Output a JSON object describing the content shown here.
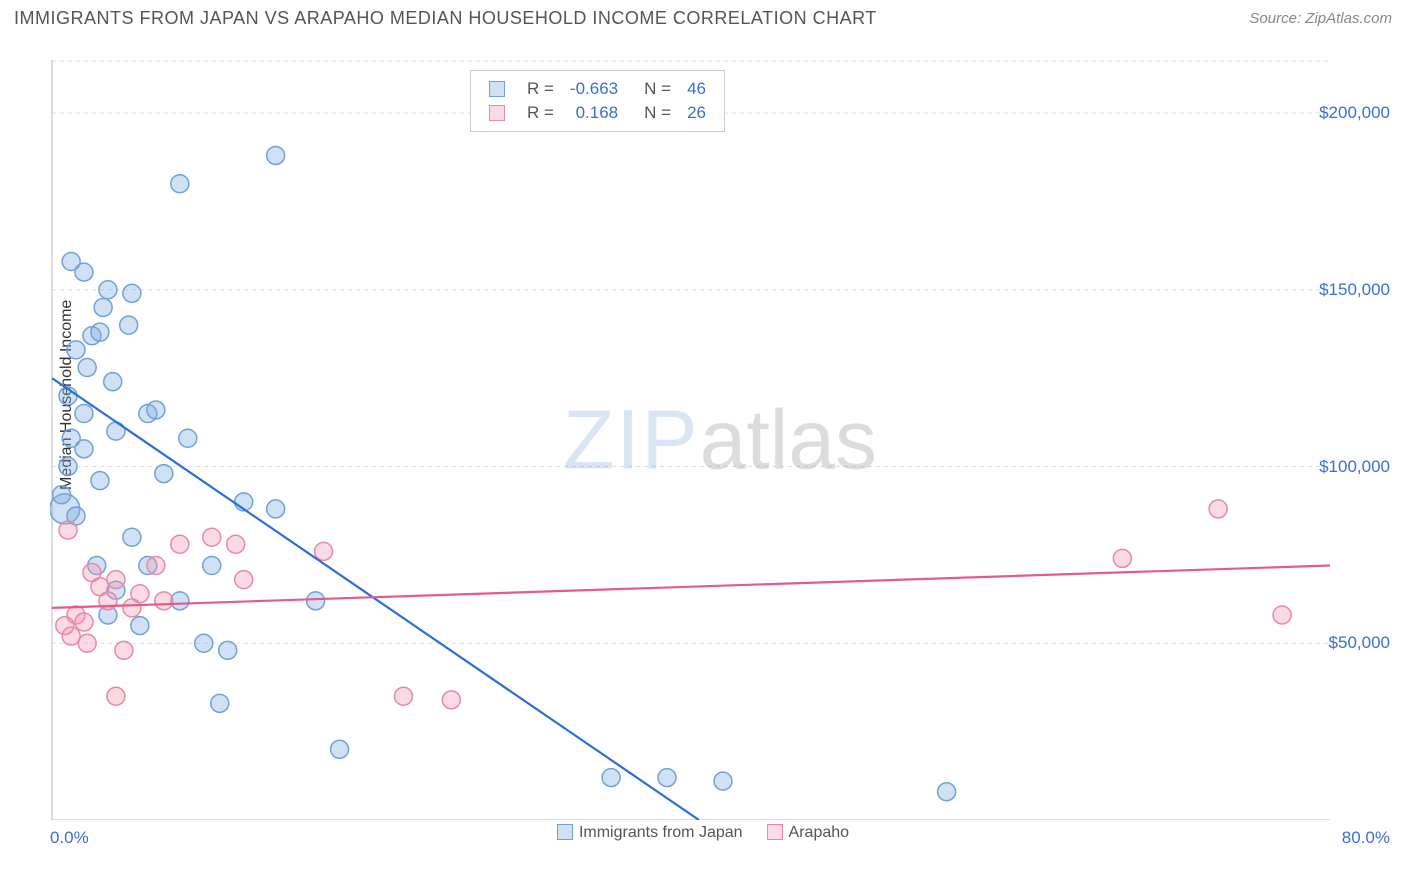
{
  "header": {
    "title": "IMMIGRANTS FROM JAPAN VS ARAPAHO MEDIAN HOUSEHOLD INCOME CORRELATION CHART",
    "source_prefix": "Source: ",
    "source_link": "ZipAtlas.com"
  },
  "chart": {
    "type": "scatter",
    "xlim": [
      0,
      80
    ],
    "ylim": [
      0,
      215000
    ],
    "xticks": [
      10,
      20,
      30,
      40,
      50,
      60,
      70
    ],
    "yticks": [
      50000,
      100000,
      150000,
      200000
    ],
    "ytick_labels": [
      "$50,000",
      "$100,000",
      "$150,000",
      "$200,000"
    ],
    "x_axis_start_label": "0.0%",
    "x_axis_end_label": "80.0%",
    "y_axis_label": "Median Household Income",
    "grid_color": "#dddddd",
    "axis_color": "#bbbbbb",
    "background_color": "#ffffff",
    "marker_radius": 9,
    "marker_stroke_width": 1.5,
    "line_width": 2.2,
    "series": [
      {
        "name": "Immigrants from Japan",
        "fill": "rgba(120,170,220,0.35)",
        "stroke": "#6fa3d8",
        "line_color": "#2e6fd6",
        "R": "-0.663",
        "N": "46",
        "trend": {
          "x1": 0,
          "y1": 125000,
          "x2": 40.5,
          "y2": 0
        },
        "points": [
          {
            "x": 1.2,
            "y": 158000
          },
          {
            "x": 2.0,
            "y": 155000
          },
          {
            "x": 3.5,
            "y": 150000
          },
          {
            "x": 5.0,
            "y": 149000
          },
          {
            "x": 8.0,
            "y": 180000
          },
          {
            "x": 14.0,
            "y": 188000
          },
          {
            "x": 2.5,
            "y": 137000
          },
          {
            "x": 3.0,
            "y": 138000
          },
          {
            "x": 1.5,
            "y": 133000
          },
          {
            "x": 2.2,
            "y": 128000
          },
          {
            "x": 3.8,
            "y": 124000
          },
          {
            "x": 6.0,
            "y": 115000
          },
          {
            "x": 6.5,
            "y": 116000
          },
          {
            "x": 4.0,
            "y": 110000
          },
          {
            "x": 2.0,
            "y": 105000
          },
          {
            "x": 8.5,
            "y": 108000
          },
          {
            "x": 1.0,
            "y": 100000
          },
          {
            "x": 7.0,
            "y": 98000
          },
          {
            "x": 3.0,
            "y": 96000
          },
          {
            "x": 12.0,
            "y": 90000
          },
          {
            "x": 14.0,
            "y": 88000
          },
          {
            "x": 0.8,
            "y": 88000,
            "r": 15
          },
          {
            "x": 1.5,
            "y": 86000
          },
          {
            "x": 5.0,
            "y": 80000
          },
          {
            "x": 2.8,
            "y": 72000
          },
          {
            "x": 6.0,
            "y": 72000
          },
          {
            "x": 10.0,
            "y": 72000
          },
          {
            "x": 4.0,
            "y": 65000
          },
          {
            "x": 8.0,
            "y": 62000
          },
          {
            "x": 16.5,
            "y": 62000
          },
          {
            "x": 3.5,
            "y": 58000
          },
          {
            "x": 9.5,
            "y": 50000
          },
          {
            "x": 11.0,
            "y": 48000
          },
          {
            "x": 10.5,
            "y": 33000
          },
          {
            "x": 18.0,
            "y": 20000
          },
          {
            "x": 35.0,
            "y": 12000
          },
          {
            "x": 38.5,
            "y": 12000
          },
          {
            "x": 42.0,
            "y": 11000
          },
          {
            "x": 56.0,
            "y": 8000
          },
          {
            "x": 3.2,
            "y": 145000
          },
          {
            "x": 4.8,
            "y": 140000
          },
          {
            "x": 1.0,
            "y": 120000
          },
          {
            "x": 2.0,
            "y": 115000
          },
          {
            "x": 1.2,
            "y": 108000
          },
          {
            "x": 0.6,
            "y": 92000
          },
          {
            "x": 5.5,
            "y": 55000
          }
        ]
      },
      {
        "name": "Arapaho",
        "fill": "rgba(240,150,175,0.35)",
        "stroke": "#e889a5",
        "line_color": "#e55a8a",
        "R": "0.168",
        "N": "26",
        "trend": {
          "x1": 0,
          "y1": 60000,
          "x2": 80,
          "y2": 72000
        },
        "points": [
          {
            "x": 1.0,
            "y": 82000
          },
          {
            "x": 2.5,
            "y": 70000
          },
          {
            "x": 4.0,
            "y": 68000
          },
          {
            "x": 3.0,
            "y": 66000
          },
          {
            "x": 5.5,
            "y": 64000
          },
          {
            "x": 6.5,
            "y": 72000
          },
          {
            "x": 8.0,
            "y": 78000
          },
          {
            "x": 10.0,
            "y": 80000
          },
          {
            "x": 11.5,
            "y": 78000
          },
          {
            "x": 17.0,
            "y": 76000
          },
          {
            "x": 1.5,
            "y": 58000
          },
          {
            "x": 2.0,
            "y": 56000
          },
          {
            "x": 0.8,
            "y": 55000
          },
          {
            "x": 3.5,
            "y": 62000
          },
          {
            "x": 5.0,
            "y": 60000
          },
          {
            "x": 7.0,
            "y": 62000
          },
          {
            "x": 1.2,
            "y": 52000
          },
          {
            "x": 2.2,
            "y": 50000
          },
          {
            "x": 4.5,
            "y": 48000
          },
          {
            "x": 4.0,
            "y": 35000
          },
          {
            "x": 22.0,
            "y": 35000
          },
          {
            "x": 25.0,
            "y": 34000
          },
          {
            "x": 67.0,
            "y": 74000
          },
          {
            "x": 73.0,
            "y": 88000
          },
          {
            "x": 77.0,
            "y": 58000
          },
          {
            "x": 12.0,
            "y": 68000
          }
        ]
      }
    ]
  },
  "legend_box": {
    "rows": [
      {
        "series": 0,
        "r_label": "R =",
        "n_label": "N ="
      },
      {
        "series": 1,
        "r_label": "R =",
        "n_label": "N ="
      }
    ],
    "label_color": "#555555",
    "value_color": "#3b6fd4"
  },
  "bottom_legend": {
    "items": [
      {
        "series": 0
      },
      {
        "series": 1
      }
    ]
  },
  "watermark": {
    "part1": "ZIP",
    "part2": "atlas"
  }
}
